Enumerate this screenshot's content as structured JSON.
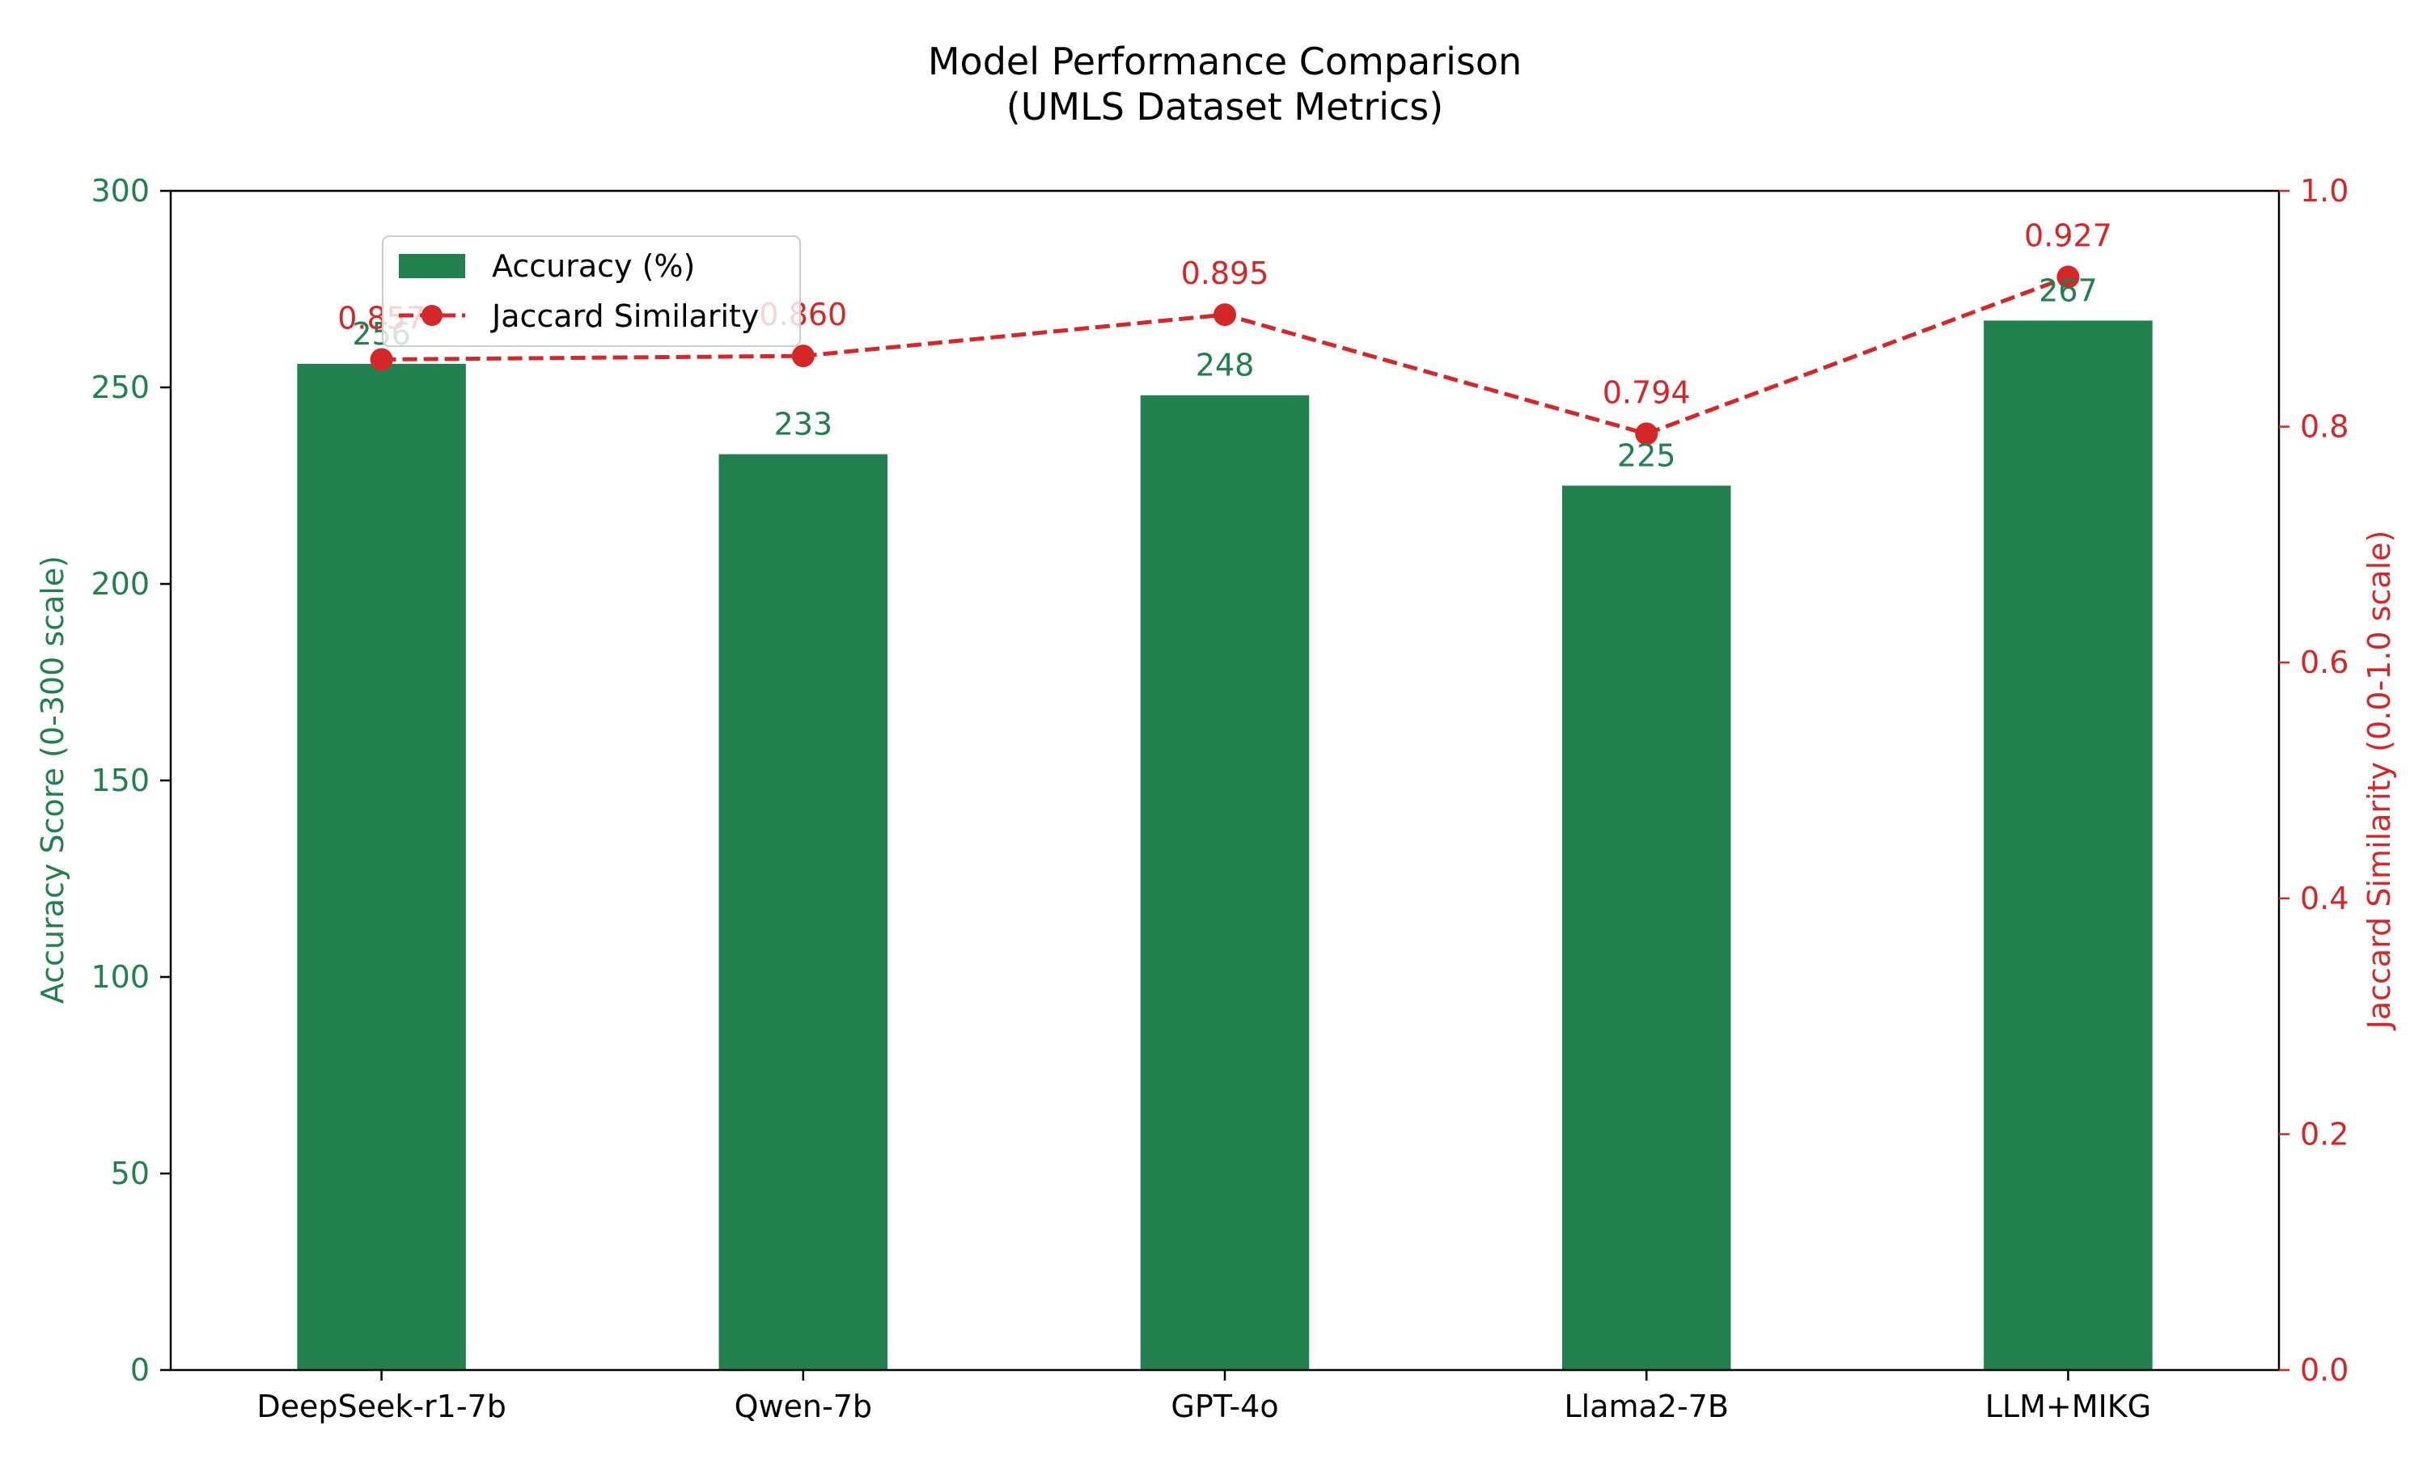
{
  "chart_data": {
    "type": "bar",
    "title": "Model Performance Comparison",
    "subtitle": "(UMLS Dataset Metrics)",
    "categories": [
      "DeepSeek-r1-7b",
      "Qwen-7b",
      "GPT-4o",
      "Llama2-7B",
      "LLM+MIKG"
    ],
    "series": [
      {
        "name": "Accuracy (%)",
        "kind": "bar",
        "axis": "left",
        "color": "#21804d",
        "values": [
          256,
          233,
          248,
          225,
          267
        ],
        "labels": [
          "256",
          "233",
          "248",
          "225",
          "267"
        ]
      },
      {
        "name": "Jaccard Similarity",
        "kind": "line",
        "axis": "right",
        "color": "#d62728",
        "line_style": "dashed",
        "marker": "circle",
        "values": [
          0.857,
          0.86,
          0.895,
          0.794,
          0.927
        ],
        "labels": [
          "0.857",
          "0.860",
          "0.895",
          "0.794",
          "0.927"
        ]
      }
    ],
    "y_left": {
      "label": "Accuracy Score (0-300 scale)",
      "lim": [
        0,
        300
      ],
      "ticks": [
        0,
        50,
        100,
        150,
        200,
        250,
        300
      ],
      "tick_labels": [
        "0",
        "50",
        "100",
        "150",
        "200",
        "250",
        "300"
      ],
      "color": "#21804d"
    },
    "y_right": {
      "label": "Jaccard Similarity (0.0-1.0 scale)",
      "lim": [
        0,
        1
      ],
      "ticks": [
        0,
        0.2,
        0.4,
        0.6,
        0.8,
        1.0
      ],
      "tick_labels": [
        "0.0",
        "0.2",
        "0.4",
        "0.6",
        "0.8",
        "1.0"
      ],
      "color": "#d62728"
    },
    "xlabel": "",
    "grid": false,
    "legend_position": "top-left"
  }
}
